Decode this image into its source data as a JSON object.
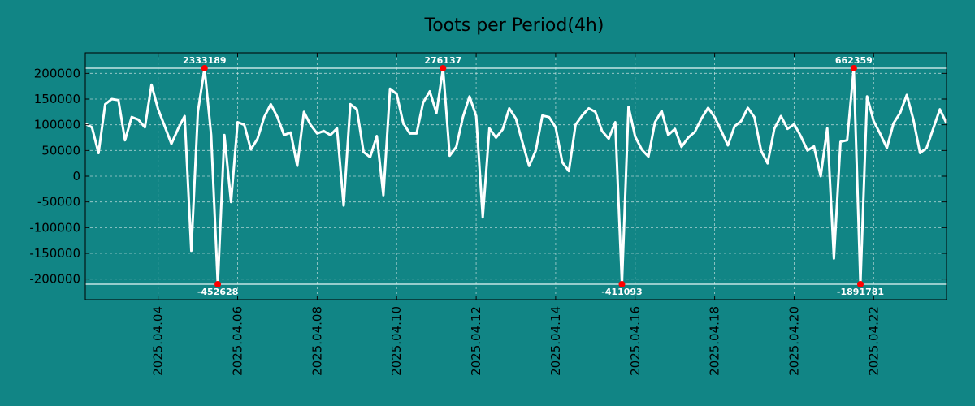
{
  "chart_data": {
    "type": "line",
    "title": "Toots per Period(4h)",
    "xlabel": "",
    "ylabel": "",
    "ylim": [
      -240000,
      240000
    ],
    "yticks": [
      200000,
      150000,
      100000,
      50000,
      0,
      -50000,
      -100000,
      -150000,
      -200000
    ],
    "ytick_labels": [
      "200000",
      "150000",
      "100000",
      "50000",
      "0",
      "-50000",
      "-100000",
      "-150000",
      "-200000"
    ],
    "xticks": [
      {
        "index": 11,
        "label": "2025.04.04"
      },
      {
        "index": 23,
        "label": "2025.04.06"
      },
      {
        "index": 35,
        "label": "2025.04.08"
      },
      {
        "index": 47,
        "label": "2025.04.10"
      },
      {
        "index": 59,
        "label": "2025.04.12"
      },
      {
        "index": 71,
        "label": "2025.04.14"
      },
      {
        "index": 83,
        "label": "2025.04.16"
      },
      {
        "index": 95,
        "label": "2025.04.18"
      },
      {
        "index": 107,
        "label": "2025.04.20"
      },
      {
        "index": 119,
        "label": "2025.04.22"
      }
    ],
    "clip_high": 210000,
    "clip_low": -210000,
    "grid": true,
    "series": [
      {
        "name": "toots",
        "color": "#ffffff",
        "values": [
          102000,
          95000,
          45000,
          140000,
          150000,
          148000,
          70000,
          115000,
          110000,
          95000,
          178000,
          130000,
          97000,
          63000,
          92000,
          117000,
          -145000,
          125000,
          210000,
          80000,
          -210000,
          80000,
          -50000,
          105000,
          100000,
          52000,
          73000,
          115000,
          140000,
          115000,
          80000,
          85000,
          20000,
          125000,
          100000,
          83000,
          88000,
          80000,
          93000,
          -57000,
          140000,
          130000,
          47000,
          37000,
          78000,
          -37000,
          170000,
          160000,
          103000,
          83000,
          83000,
          143000,
          165000,
          123000,
          210000,
          40000,
          57000,
          115000,
          155000,
          117000,
          -80000,
          93000,
          75000,
          91000,
          132000,
          112000,
          65000,
          20000,
          50000,
          118000,
          115000,
          95000,
          27000,
          10000,
          100000,
          118000,
          132000,
          125000,
          88000,
          73000,
          105000,
          -210000,
          135000,
          77000,
          52000,
          38000,
          105000,
          127000,
          80000,
          92000,
          57000,
          75000,
          86000,
          112000,
          133000,
          115000,
          88000,
          60000,
          97000,
          107000,
          133000,
          115000,
          50000,
          25000,
          92000,
          117000,
          92000,
          101000,
          78000,
          50000,
          58000,
          0,
          93000,
          -160000,
          67000,
          70000,
          210000,
          -210000,
          155000,
          107000,
          82000,
          55000,
          103000,
          123000,
          158000,
          110000,
          45000,
          55000,
          93000,
          130000,
          103000
        ]
      }
    ],
    "annotations": [
      {
        "index": 18,
        "y": 210000,
        "label": "2333189",
        "position": "above"
      },
      {
        "index": 54,
        "y": 210000,
        "label": "276137",
        "position": "above"
      },
      {
        "index": 116,
        "y": 210000,
        "label": "662359",
        "position": "above"
      },
      {
        "index": 20,
        "y": -210000,
        "label": "-452628",
        "position": "below"
      },
      {
        "index": 81,
        "y": -210000,
        "label": "-411093",
        "position": "below"
      },
      {
        "index": 117,
        "y": -210000,
        "label": "-1891781",
        "position": "below"
      }
    ],
    "marker_color": "#ff0000"
  }
}
